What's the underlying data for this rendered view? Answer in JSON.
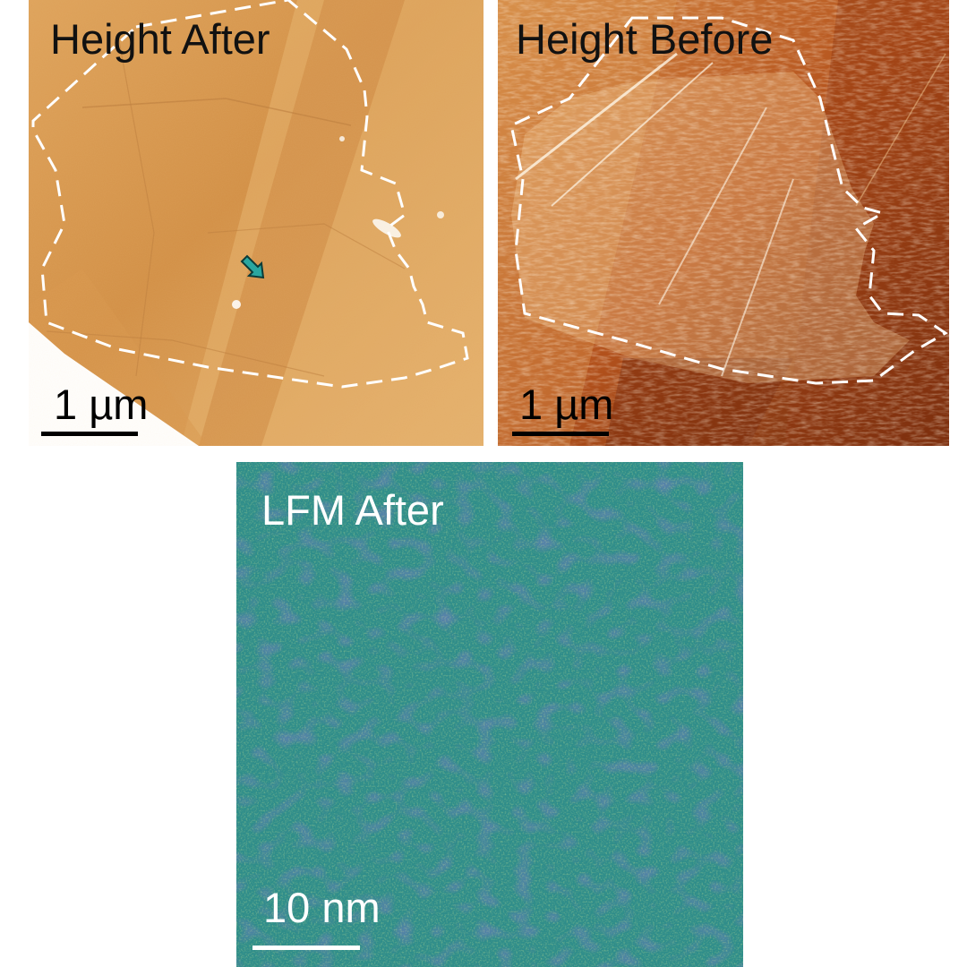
{
  "panels": {
    "height_after": {
      "title": "Height After",
      "scale_label": "1 µm",
      "title_color": "#111111",
      "bar_color": "#000000"
    },
    "height_before": {
      "title": "Height Before",
      "scale_label": "1 µm",
      "title_color": "#111111",
      "bar_color": "#000000"
    },
    "lfm_after": {
      "title": "LFM After",
      "scale_label": "10 nm",
      "title_color": "#ffffff",
      "bar_color": "#ffffff"
    }
  },
  "colors": {
    "height_after_base": "#d99a4e",
    "height_before_base": "#b6531b",
    "lfm_base": "#2f8d8a",
    "outline": "#ffffff",
    "arrow": "#2aa7a0"
  },
  "icons": {
    "arrow": "arrow-down-right-icon"
  }
}
